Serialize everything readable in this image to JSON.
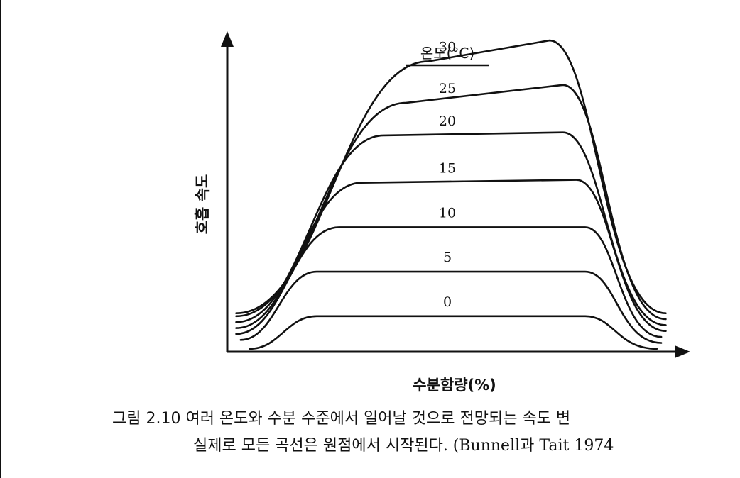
{
  "chart_data": {
    "type": "line",
    "title": "",
    "xlabel": "수분함량(%)",
    "ylabel": "호흡 속도",
    "legend_title": "온도(°C)",
    "xlim": [
      0,
      100
    ],
    "ylim": [
      0,
      100
    ],
    "x_ticks": [],
    "y_ticks": [],
    "grid": false,
    "series": [
      {
        "name": "0",
        "x": [
          5,
          20,
          80,
          96
        ],
        "y": [
          1,
          12,
          12,
          1
        ]
      },
      {
        "name": "5",
        "x": [
          3,
          20,
          80,
          97
        ],
        "y": [
          4,
          27,
          27,
          3
        ]
      },
      {
        "name": "10",
        "x": [
          2,
          25,
          80,
          97
        ],
        "y": [
          6,
          42,
          42,
          5
        ]
      },
      {
        "name": "15",
        "x": [
          2,
          30,
          78,
          98
        ],
        "y": [
          8,
          57,
          58,
          7
        ]
      },
      {
        "name": "20",
        "x": [
          2,
          35,
          75,
          98
        ],
        "y": [
          10,
          73,
          74,
          9
        ]
      },
      {
        "name": "25",
        "x": [
          2,
          40,
          75,
          98
        ],
        "y": [
          12,
          84,
          90,
          11
        ]
      },
      {
        "name": "30",
        "x": [
          2,
          45,
          72,
          98
        ],
        "y": [
          13,
          98,
          105,
          13
        ]
      }
    ]
  },
  "caption": {
    "line1": "그림 2.10  여러 온도와 수분 수준에서 일어날 것으로 전망되는 속도 변",
    "line2": "실제로 모든 곡선은 원점에서 시작된다.  (Bunnell과 Tait 1974"
  }
}
